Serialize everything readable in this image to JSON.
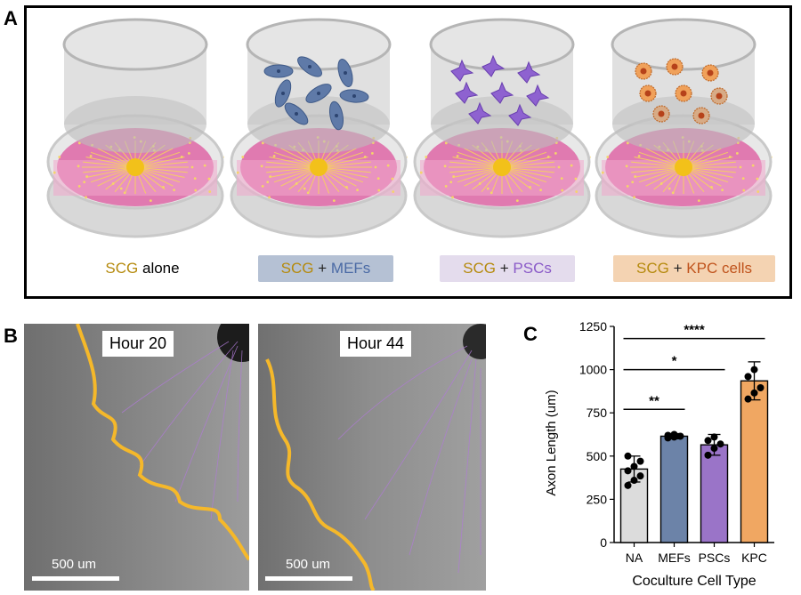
{
  "panels": {
    "a": "A",
    "b": "B",
    "c": "C"
  },
  "captions": [
    {
      "scg": "SCG",
      "rest": "alone",
      "plus": "",
      "bg": "#ffffff",
      "color": "#000000"
    },
    {
      "scg": "SCG",
      "plus": "+",
      "rest": "MEFs",
      "bg": "#b5c1d4",
      "color": "#4a6aa5"
    },
    {
      "scg": "SCG",
      "plus": "+",
      "rest": "PSCs",
      "bg": "#e4dced",
      "color": "#8a5ac8"
    },
    {
      "scg": "SCG",
      "plus": "+",
      "rest": "KPC cells",
      "bg": "#f4d3b2",
      "color": "#c0531c"
    }
  ],
  "micro": {
    "left": {
      "hour": "Hour 20",
      "scale": "500 um"
    },
    "right": {
      "hour": "Hour 44",
      "scale": "500 um"
    }
  },
  "colors": {
    "dish_rim": "#c9c9c9",
    "media": "#e07ab0",
    "ganglion": "#f2c11a",
    "outline": "#f5b82a",
    "axon": "#a66ad6"
  },
  "chart_data": {
    "type": "bar",
    "categories": [
      "NA",
      "MEFs",
      "PSCs",
      "KPC"
    ],
    "values": [
      425,
      615,
      565,
      935
    ],
    "errors": [
      75,
      15,
      60,
      110
    ],
    "colors": [
      "#dcdcdc",
      "#6c83a8",
      "#9a74c8",
      "#f0a762"
    ],
    "points": [
      [
        330,
        360,
        385,
        415,
        440,
        470,
        500
      ],
      [
        605,
        610,
        615,
        620,
        625
      ],
      [
        505,
        545,
        570,
        590,
        610
      ],
      [
        830,
        865,
        895,
        960,
        1000
      ]
    ],
    "ylabel": "Axon Length (um)",
    "xlabel": "Coculture Cell Type",
    "ylim": [
      0,
      1250
    ],
    "yticks": [
      0,
      250,
      500,
      750,
      1000,
      1250
    ],
    "significance": [
      {
        "from": 0,
        "to": 1,
        "label": "**",
        "y": 770
      },
      {
        "from": 0,
        "to": 2,
        "label": "*",
        "y": 1000
      },
      {
        "from": 0,
        "to": 3,
        "label": "****",
        "y": 1180
      }
    ]
  }
}
